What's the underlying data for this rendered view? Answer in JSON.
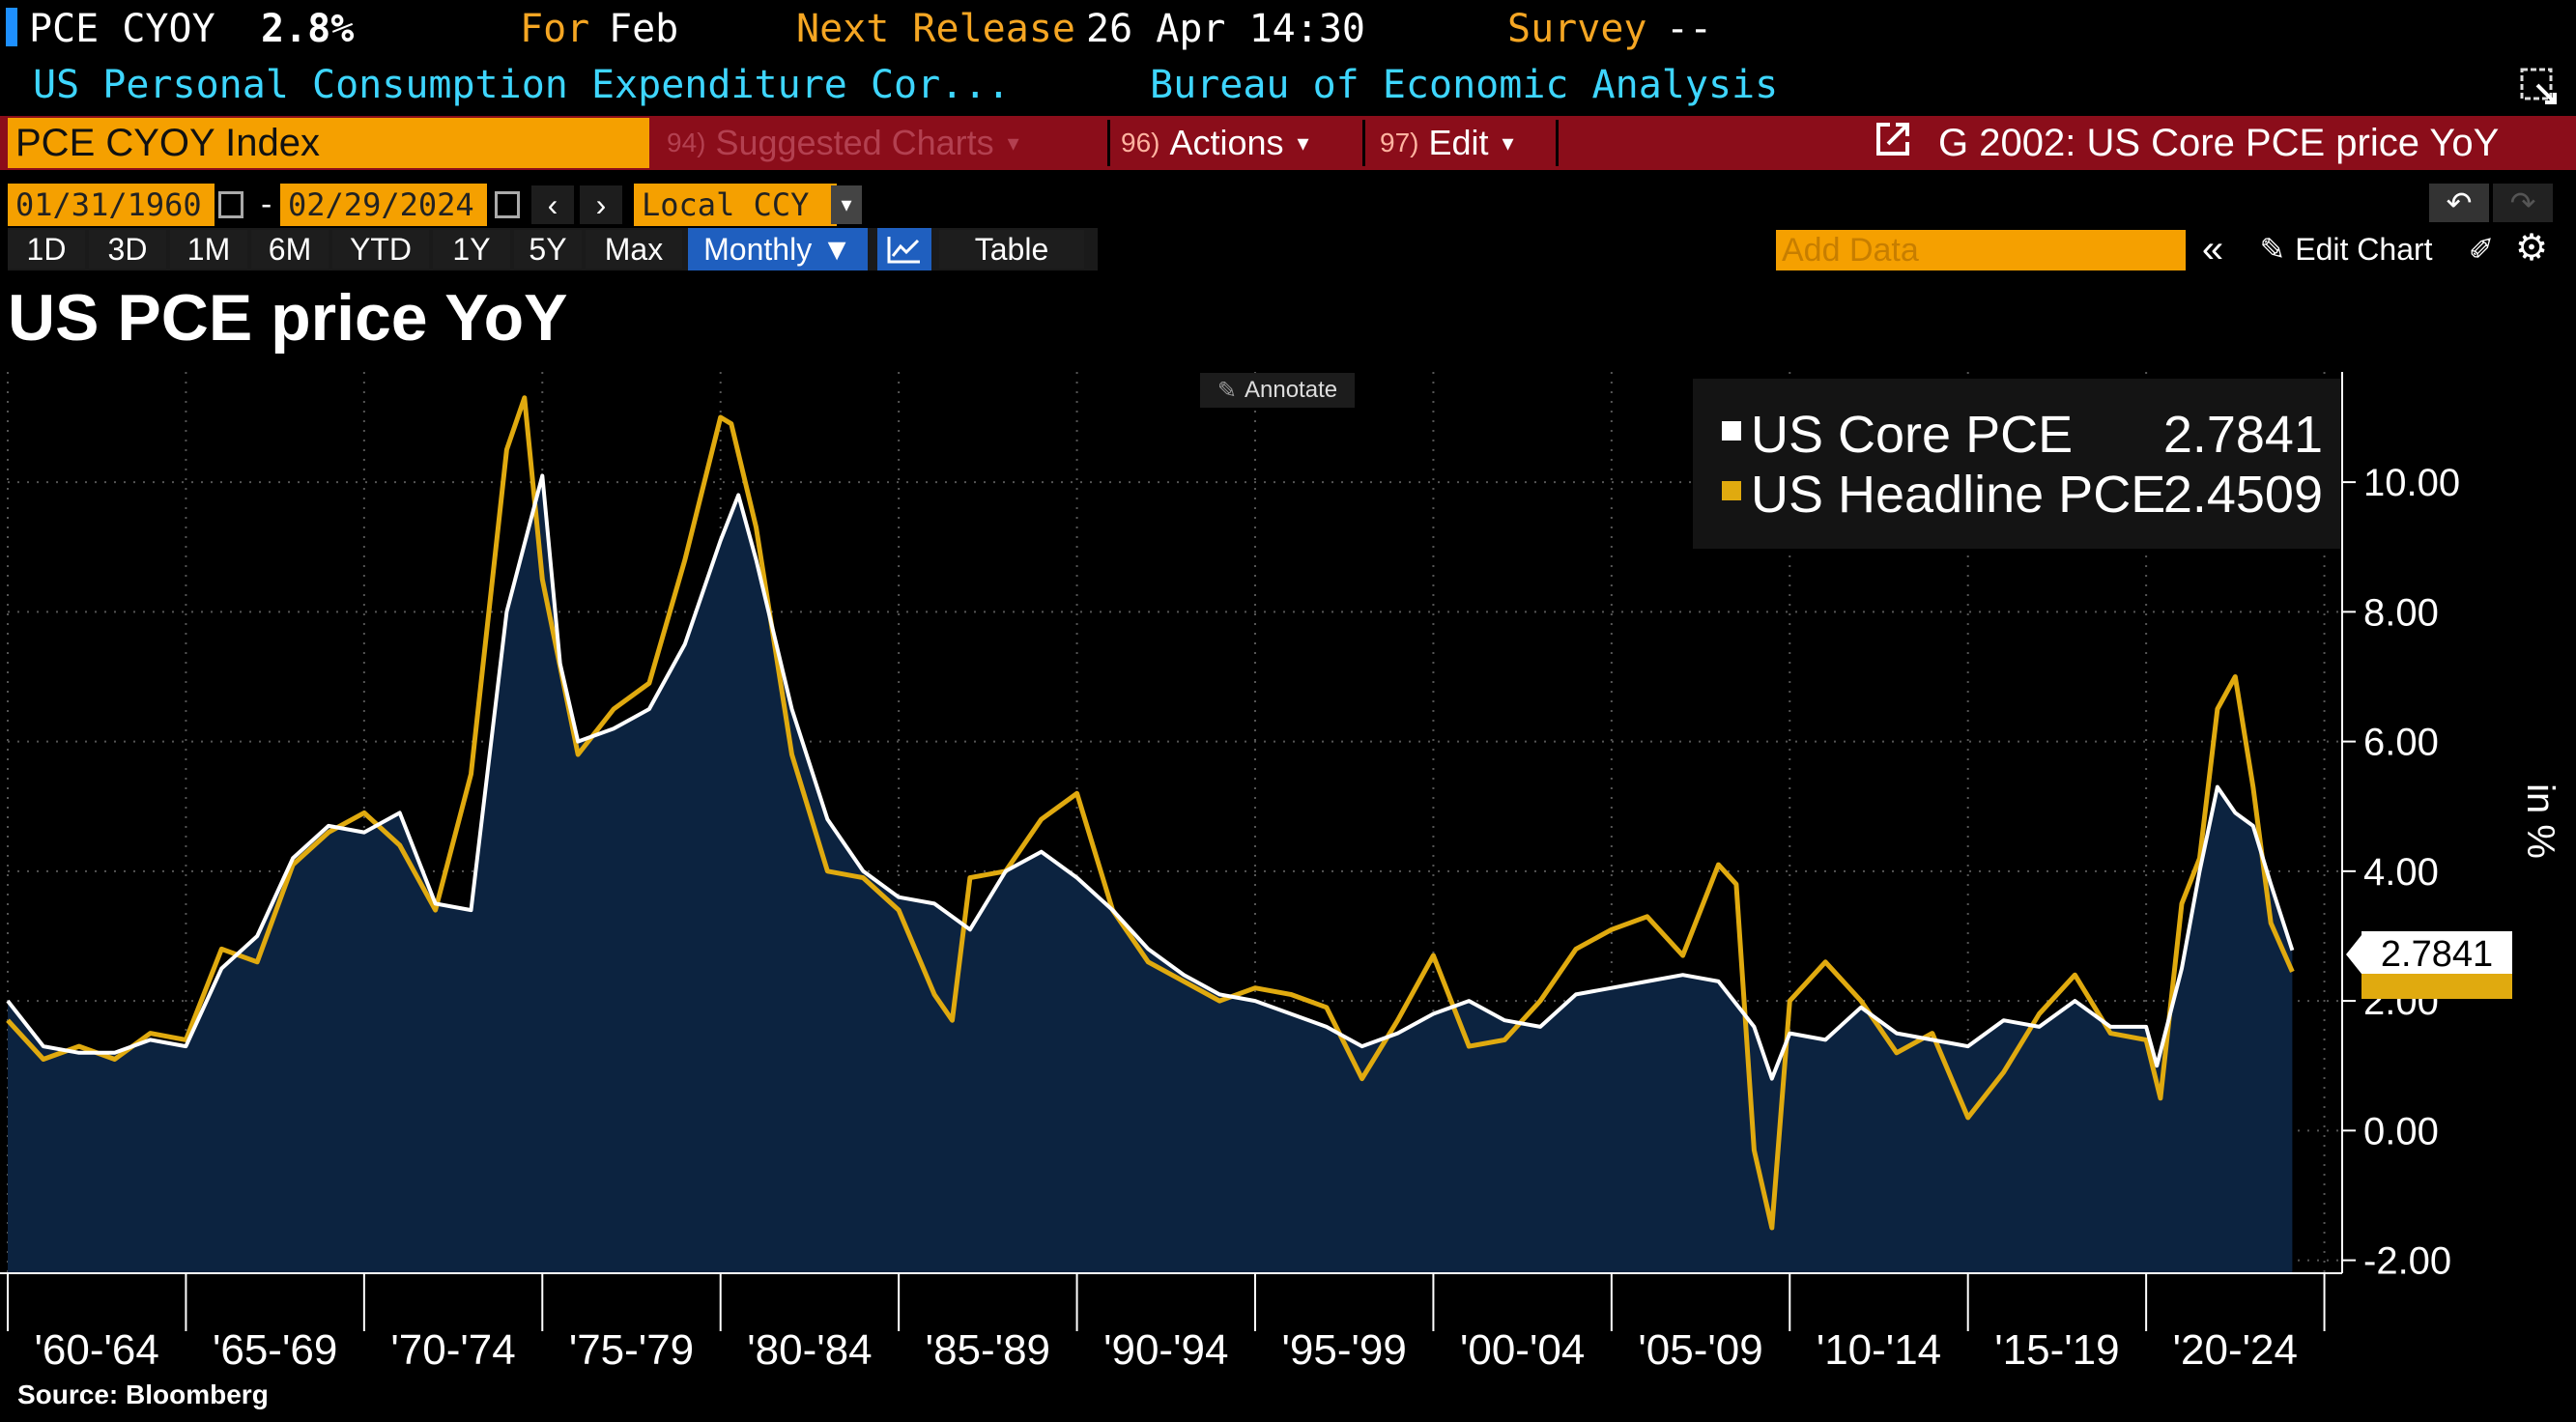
{
  "header": {
    "ticker": "PCE CYOY",
    "value": "2.8%",
    "for_label": "For",
    "for_value": "Feb",
    "next_release_label": "Next Release",
    "next_release_value": "26 Apr 14:30",
    "survey_label": "Survey",
    "survey_value": "--",
    "description": "US Personal Consumption Expenditure Cor...",
    "source_agency": "Bureau of Economic Analysis"
  },
  "toolbar": {
    "security_input": "PCE CYOY Index",
    "suggested": {
      "key": "94)",
      "label": "Suggested Charts"
    },
    "actions": {
      "key": "96)",
      "label": "Actions"
    },
    "edit": {
      "key": "97)",
      "label": "Edit"
    },
    "chart_title": "G 2002: US Core PCE price YoY"
  },
  "range": {
    "start_date": "01/31/1960",
    "separator": "-",
    "end_date": "02/29/2024",
    "currency": "Local CCY"
  },
  "timeframes": [
    "1D",
    "3D",
    "1M",
    "6M",
    "YTD",
    "1Y",
    "5Y",
    "Max"
  ],
  "frequency": "Monthly",
  "table_label": "Table",
  "add_data_placeholder": "Add Data",
  "edit_chart_label": "Edit Chart",
  "annotate_label": "Annotate",
  "source_note": "Source: Bloomberg",
  "colors": {
    "core": "#ffffff",
    "headline": "#e0aa0f",
    "area": "#0c2340",
    "orange": "#f5a623",
    "red_bar": "#8b0d1a",
    "cyan": "#3ed6ff"
  },
  "chart_data": {
    "type": "line",
    "title": "US PCE price YoY",
    "xlabel": "",
    "ylabel": "%",
    "unit_label": "in %",
    "ylim": [
      -2.2,
      11.7
    ],
    "xlim": [
      1960,
      2025.5
    ],
    "y_ticks": [
      -2,
      0,
      2,
      4,
      6,
      8,
      10
    ],
    "y_tick_labels": [
      "-2.00",
      "0.00",
      "2.00",
      "4.00",
      "6.00",
      "8.00",
      "10.00"
    ],
    "x_period_labels": [
      "'60-'64",
      "'65-'69",
      "'70-'74",
      "'75-'79",
      "'80-'84",
      "'85-'89",
      "'90-'94",
      "'95-'99",
      "'00-'04",
      "'05-'09",
      "'10-'14",
      "'15-'19",
      "'20-'24"
    ],
    "legend": [
      {
        "name": "US Core PCE",
        "last": "2.7841"
      },
      {
        "name": "US Headline PCE",
        "last": "2.4509"
      }
    ],
    "last_value_label": "2.7841",
    "series": [
      {
        "name": "US Core PCE",
        "x": [
          1960,
          1961,
          1962,
          1963,
          1964,
          1965,
          1966,
          1967,
          1968,
          1969,
          1970,
          1971,
          1972,
          1973,
          1974,
          1975,
          1975.5,
          1976,
          1977,
          1978,
          1979,
          1980,
          1980.5,
          1981,
          1982,
          1983,
          1984,
          1985,
          1986,
          1987,
          1988,
          1989,
          1990,
          1991,
          1992,
          1993,
          1994,
          1995,
          1996,
          1997,
          1998,
          1999,
          2000,
          2001,
          2002,
          2003,
          2004,
          2005,
          2006,
          2007,
          2008,
          2009,
          2009.5,
          2010,
          2011,
          2012,
          2013,
          2014,
          2015,
          2016,
          2017,
          2018,
          2019,
          2020,
          2020.3,
          2021,
          2021.5,
          2022,
          2022.5,
          2023,
          2023.5,
          2024.1
        ],
        "values": [
          2.0,
          1.3,
          1.2,
          1.2,
          1.4,
          1.3,
          2.5,
          3.0,
          4.2,
          4.7,
          4.6,
          4.9,
          3.5,
          3.4,
          8.0,
          10.1,
          7.2,
          6.0,
          6.2,
          6.5,
          7.5,
          9.1,
          9.8,
          8.8,
          6.5,
          4.8,
          4.0,
          3.6,
          3.5,
          3.1,
          4.0,
          4.3,
          3.9,
          3.4,
          2.8,
          2.4,
          2.1,
          2.0,
          1.8,
          1.6,
          1.3,
          1.5,
          1.8,
          2.0,
          1.7,
          1.6,
          2.1,
          2.2,
          2.3,
          2.4,
          2.3,
          1.6,
          0.8,
          1.5,
          1.4,
          1.9,
          1.5,
          1.4,
          1.3,
          1.7,
          1.6,
          2.0,
          1.6,
          1.6,
          1.0,
          2.5,
          4.0,
          5.3,
          4.9,
          4.7,
          3.8,
          2.78
        ]
      },
      {
        "name": "US Headline PCE",
        "x": [
          1960,
          1961,
          1962,
          1963,
          1964,
          1965,
          1966,
          1967,
          1968,
          1969,
          1970,
          1971,
          1972,
          1973,
          1974,
          1974.5,
          1975,
          1976,
          1977,
          1978,
          1979,
          1980,
          1980.3,
          1981,
          1982,
          1983,
          1984,
          1985,
          1986,
          1986.5,
          1987,
          1988,
          1989,
          1990,
          1991,
          1992,
          1993,
          1994,
          1995,
          1996,
          1997,
          1998,
          1999,
          2000,
          2001,
          2002,
          2003,
          2004,
          2005,
          2006,
          2007,
          2008,
          2008.5,
          2009,
          2009.5,
          2010,
          2011,
          2012,
          2013,
          2014,
          2015,
          2016,
          2017,
          2018,
          2019,
          2020,
          2020.4,
          2021,
          2021.5,
          2022,
          2022.5,
          2023,
          2023.5,
          2024.1
        ],
        "values": [
          1.7,
          1.1,
          1.3,
          1.1,
          1.5,
          1.4,
          2.8,
          2.6,
          4.1,
          4.6,
          4.9,
          4.4,
          3.4,
          5.5,
          10.5,
          11.3,
          8.5,
          5.8,
          6.5,
          6.9,
          8.8,
          11.0,
          10.9,
          9.3,
          5.8,
          4.0,
          3.9,
          3.4,
          2.1,
          1.7,
          3.9,
          4.0,
          4.8,
          5.2,
          3.4,
          2.6,
          2.3,
          2.0,
          2.2,
          2.1,
          1.9,
          0.8,
          1.7,
          2.7,
          1.3,
          1.4,
          2.0,
          2.8,
          3.1,
          3.3,
          2.7,
          4.1,
          3.8,
          -0.3,
          -1.5,
          2.0,
          2.6,
          2.0,
          1.2,
          1.5,
          0.2,
          0.9,
          1.8,
          2.4,
          1.5,
          1.4,
          0.5,
          3.5,
          4.2,
          6.5,
          7.0,
          5.3,
          3.2,
          2.45
        ]
      }
    ]
  }
}
